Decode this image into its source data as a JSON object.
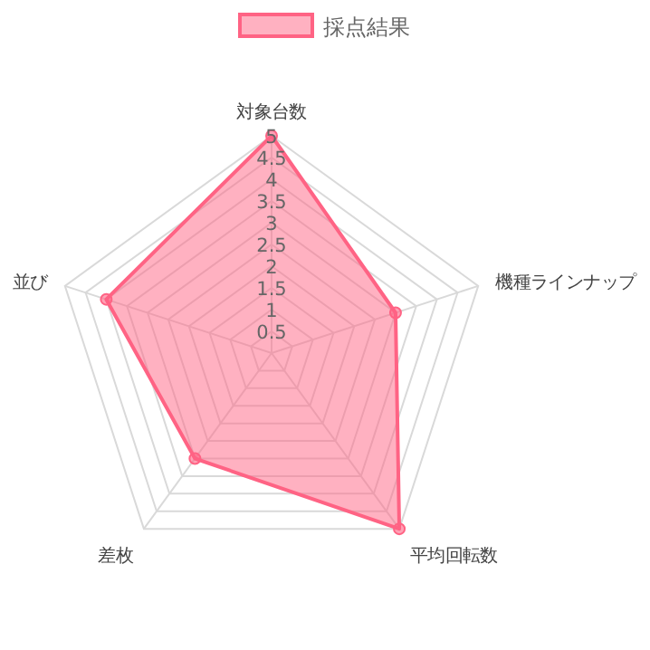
{
  "chart_data": {
    "type": "radar",
    "categories": [
      "対象台数",
      "機種ラインナップ",
      "平均回転数",
      "差枚",
      "並び"
    ],
    "series": [
      {
        "name": "採点結果",
        "color": "#ff6384",
        "values": [
          5,
          3,
          5,
          3,
          4
        ]
      }
    ],
    "ylim": [
      0,
      5
    ],
    "yticks": [
      0.5,
      1,
      1.5,
      2,
      2.5,
      3,
      3.5,
      4,
      4.5,
      5
    ],
    "grid": true,
    "legend": "top",
    "marker": "circle"
  }
}
